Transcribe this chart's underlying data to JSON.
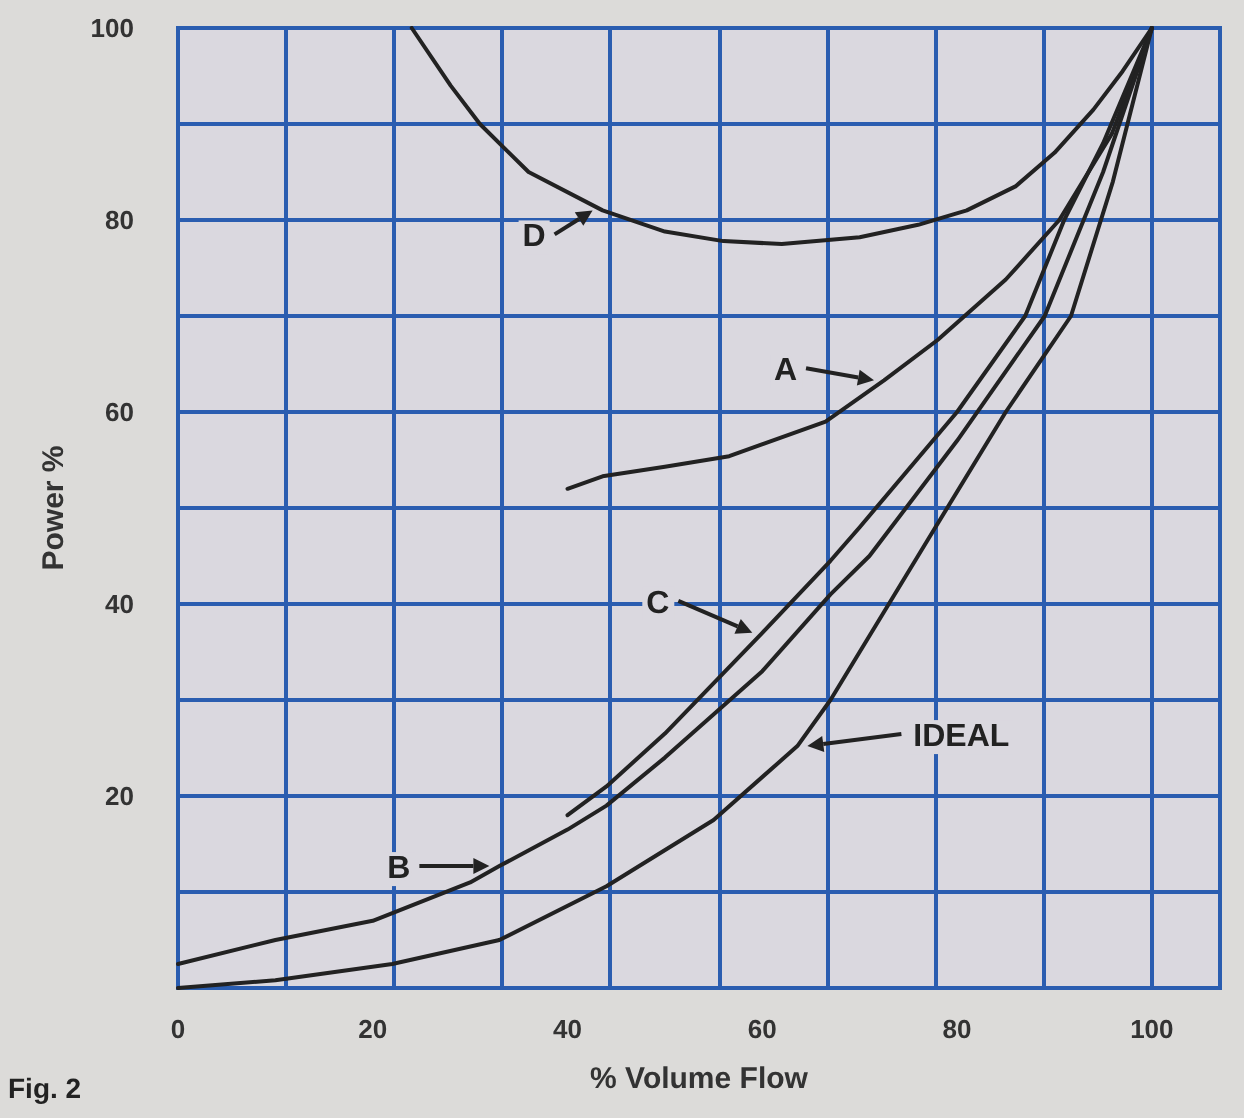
{
  "chart_data": {
    "type": "line",
    "xlabel": "% Volume Flow",
    "ylabel": "Power %",
    "annotations": [
      "Fig. 2"
    ],
    "xlim": [
      0,
      107
    ],
    "ylim": [
      0,
      100
    ],
    "xticks": [
      0,
      {
        "value": 11.1,
        "label": null
      },
      20,
      {
        "value": 22.2,
        "label": null
      },
      {
        "value": 33.3,
        "label": null
      },
      40,
      {
        "value": 44.4,
        "label": null
      },
      {
        "value": 55.6,
        "label": null
      },
      60,
      {
        "value": 66.7,
        "label": null
      },
      {
        "value": 77.8,
        "label": null
      },
      80,
      {
        "value": 88.9,
        "label": null
      },
      100
    ],
    "yticks": [
      {
        "value": 0,
        "label": null
      },
      {
        "value": 10,
        "label": null
      },
      20,
      {
        "value": 30,
        "label": null
      },
      40,
      {
        "value": 50,
        "label": null
      },
      60,
      {
        "value": 70,
        "label": null
      },
      80,
      {
        "value": 90,
        "label": null
      },
      100
    ],
    "grid": true,
    "legend": "center",
    "marker": "none",
    "line_style": "solid",
    "series": [
      {
        "name": "D",
        "color": "#222222",
        "x": [
          24,
          28,
          31,
          36,
          43.6,
          50,
          56,
          62,
          70,
          76,
          81,
          86,
          90,
          94,
          97,
          100
        ],
        "values": [
          100,
          94,
          90,
          85,
          81,
          78.8,
          77.8,
          77.5,
          78.2,
          79.5,
          81,
          83.5,
          87,
          91.5,
          95.5,
          100
        ]
      },
      {
        "name": "A",
        "color": "#222222",
        "x": [
          40,
          43.6,
          50,
          56.6,
          66.5,
          72.5,
          78,
          85,
          90.5,
          95.9,
          100
        ],
        "values": [
          52,
          53.3,
          54.3,
          55.4,
          59,
          63.3,
          67.5,
          73.8,
          80,
          89,
          100
        ]
      },
      {
        "name": "C",
        "color": "#222222",
        "x": [
          40,
          44,
          50,
          60,
          67,
          70,
          80,
          87,
          91,
          95,
          100
        ],
        "values": [
          18,
          21,
          26.5,
          37,
          44.5,
          48,
          60,
          70,
          80,
          88,
          100
        ]
      },
      {
        "name": "B",
        "color": "#222222",
        "x": [
          0,
          10,
          20,
          30,
          33,
          40,
          44,
          50,
          60,
          67,
          71,
          80,
          89,
          95,
          100
        ],
        "values": [
          2.5,
          5,
          7,
          11,
          12.7,
          16.5,
          19,
          24,
          33,
          41,
          45,
          57,
          70,
          85,
          100
        ]
      },
      {
        "name": "IDEAL",
        "color": "#222222",
        "x": [
          0,
          10,
          22,
          33,
          44,
          55,
          63.6,
          67,
          77,
          85,
          91.7,
          96,
          100
        ],
        "values": [
          0,
          0.8,
          2.5,
          5,
          10.6,
          17.5,
          25.2,
          30,
          46.7,
          60,
          70,
          84,
          100
        ]
      }
    ]
  }
}
